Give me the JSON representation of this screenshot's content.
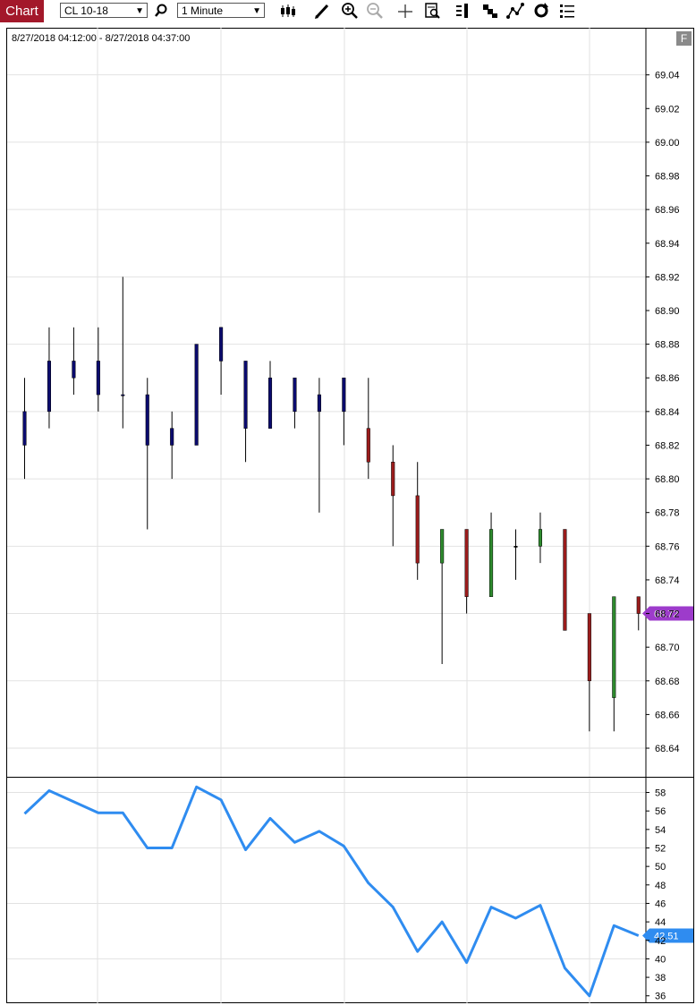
{
  "toolbar": {
    "tab_label": "Chart",
    "symbol": "CL 10-18",
    "interval": "1 Minute",
    "icons": [
      "search-icon",
      "bar-style-icon",
      "pencil-icon",
      "zoom-in-icon",
      "zoom-out-icon",
      "crosshair-icon",
      "data-box-icon",
      "chart-trader-icon",
      "properties-icon",
      "drawing-tools-icon",
      "reload-icon",
      "menu-list-icon"
    ]
  },
  "chart_data": [
    {
      "type": "candlestick",
      "title": "8/27/2018 04:12:00 - 8/27/2018 04:37:00",
      "ylim": [
        68.623,
        69.068
      ],
      "y_ticks": [
        "69.04",
        "69.02",
        "69.00",
        "68.98",
        "68.96",
        "68.94",
        "68.92",
        "68.90",
        "68.88",
        "68.86",
        "68.84",
        "68.82",
        "68.80",
        "68.78",
        "68.76",
        "68.74",
        "68.72",
        "68.70",
        "68.68",
        "68.66",
        "68.64"
      ],
      "last_price": "68.72",
      "colors": {
        "up": "#0b0b6e",
        "down": "#9b1c1c",
        "green": "#2e8b2e",
        "wick": "#000000",
        "marker": "#9d3bcb"
      },
      "candles": [
        {
          "o": 68.82,
          "h": 68.86,
          "l": 68.8,
          "c": 68.84,
          "color": "blue"
        },
        {
          "o": 68.84,
          "h": 68.89,
          "l": 68.83,
          "c": 68.87,
          "color": "blue"
        },
        {
          "o": 68.86,
          "h": 68.89,
          "l": 68.85,
          "c": 68.87,
          "color": "blue"
        },
        {
          "o": 68.85,
          "h": 68.89,
          "l": 68.84,
          "c": 68.87,
          "color": "blue"
        },
        {
          "o": 68.85,
          "h": 68.92,
          "l": 68.83,
          "c": 68.85,
          "color": "blue"
        },
        {
          "o": 68.85,
          "h": 68.86,
          "l": 68.77,
          "c": 68.82,
          "color": "blue"
        },
        {
          "o": 68.82,
          "h": 68.84,
          "l": 68.8,
          "c": 68.83,
          "color": "blue"
        },
        {
          "o": 68.82,
          "h": 68.88,
          "l": 68.82,
          "c": 68.88,
          "color": "blue"
        },
        {
          "o": 68.87,
          "h": 68.89,
          "l": 68.85,
          "c": 68.89,
          "color": "blue"
        },
        {
          "o": 68.87,
          "h": 68.87,
          "l": 68.81,
          "c": 68.83,
          "color": "blue"
        },
        {
          "o": 68.86,
          "h": 68.87,
          "l": 68.83,
          "c": 68.83,
          "color": "blue"
        },
        {
          "o": 68.86,
          "h": 68.86,
          "l": 68.83,
          "c": 68.84,
          "color": "blue"
        },
        {
          "o": 68.85,
          "h": 68.86,
          "l": 68.78,
          "c": 68.84,
          "color": "blue"
        },
        {
          "o": 68.84,
          "h": 68.86,
          "l": 68.82,
          "c": 68.86,
          "color": "blue"
        },
        {
          "o": 68.83,
          "h": 68.86,
          "l": 68.8,
          "c": 68.81,
          "color": "red"
        },
        {
          "o": 68.81,
          "h": 68.82,
          "l": 68.76,
          "c": 68.79,
          "color": "red"
        },
        {
          "o": 68.79,
          "h": 68.81,
          "l": 68.74,
          "c": 68.75,
          "color": "red"
        },
        {
          "o": 68.75,
          "h": 68.77,
          "l": 68.69,
          "c": 68.77,
          "color": "green"
        },
        {
          "o": 68.77,
          "h": 68.77,
          "l": 68.72,
          "c": 68.73,
          "color": "red"
        },
        {
          "o": 68.73,
          "h": 68.78,
          "l": 68.73,
          "c": 68.77,
          "color": "green"
        },
        {
          "o": 68.76,
          "h": 68.77,
          "l": 68.74,
          "c": 68.76,
          "color": "doji"
        },
        {
          "o": 68.76,
          "h": 68.78,
          "l": 68.75,
          "c": 68.77,
          "color": "green"
        },
        {
          "o": 68.77,
          "h": 68.77,
          "l": 68.71,
          "c": 68.71,
          "color": "red"
        },
        {
          "o": 68.72,
          "h": 68.72,
          "l": 68.65,
          "c": 68.68,
          "color": "red"
        },
        {
          "o": 68.67,
          "h": 68.73,
          "l": 68.65,
          "c": 68.73,
          "color": "green"
        },
        {
          "o": 68.73,
          "h": 68.73,
          "l": 68.71,
          "c": 68.72,
          "color": "red"
        }
      ]
    },
    {
      "type": "line",
      "ylim": [
        35.2,
        59.6
      ],
      "y_ticks": [
        "58",
        "56",
        "54",
        "52",
        "50",
        "48",
        "46",
        "44",
        "42",
        "40",
        "38",
        "36"
      ],
      "last_value": "42.51",
      "color": "#2f8cf0",
      "values": [
        55.7,
        58.2,
        57.0,
        55.8,
        55.8,
        52.0,
        52.0,
        58.6,
        57.2,
        51.8,
        55.2,
        52.6,
        53.8,
        52.2,
        48.2,
        45.6,
        40.8,
        44.0,
        39.6,
        45.6,
        44.4,
        45.8,
        39.0,
        36.0,
        43.6,
        42.51
      ]
    }
  ]
}
